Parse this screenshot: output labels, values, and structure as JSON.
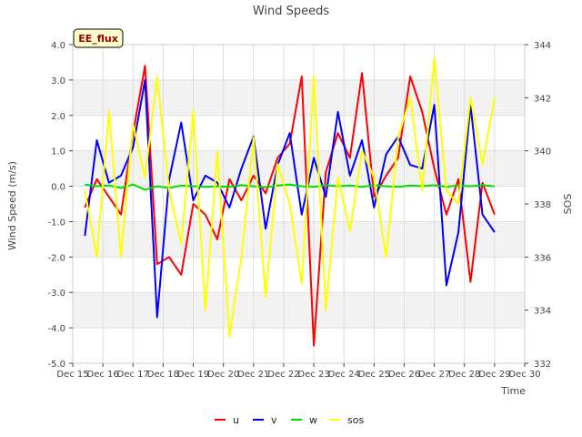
{
  "chart_data": {
    "type": "line",
    "title": "Wind Speeds",
    "xlabel": "Time",
    "ylabel": "Wind Speed (m/s)",
    "y2label": "SOS",
    "badge": "EE_flux",
    "x_ticks": [
      "Dec 15",
      "Dec 16",
      "Dec 17",
      "Dec 18",
      "Dec 19",
      "Dec 20",
      "Dec 21",
      "Dec 22",
      "Dec 23",
      "Dec 24",
      "Dec 25",
      "Dec 26",
      "Dec 27",
      "Dec 28",
      "Dec 29",
      "Dec 30"
    ],
    "xlim": [
      15,
      30
    ],
    "ylim": [
      -5,
      4
    ],
    "y_ticks": [
      "-5.0",
      "-4.0",
      "-3.0",
      "-2.0",
      "-1.0",
      "0.0",
      "1.0",
      "2.0",
      "3.0",
      "4.0"
    ],
    "y2lim": [
      332,
      344
    ],
    "y2_ticks": [
      "332",
      "334",
      "336",
      "338",
      "340",
      "342",
      "344"
    ],
    "grid": true,
    "legend_position": "bottom",
    "x": [
      15.4,
      15.8,
      16.2,
      16.6,
      17.0,
      17.4,
      17.8,
      18.2,
      18.6,
      19.0,
      19.4,
      19.8,
      20.2,
      20.6,
      21.0,
      21.4,
      21.8,
      22.2,
      22.6,
      23.0,
      23.4,
      23.8,
      24.2,
      24.6,
      25.0,
      25.4,
      25.8,
      26.2,
      26.6,
      27.0,
      27.4,
      27.8,
      28.2,
      28.6,
      29.0
    ],
    "series": [
      {
        "name": "u",
        "axis": "left",
        "color": "#ff0000",
        "values": [
          -0.6,
          0.2,
          -0.3,
          -0.8,
          1.5,
          3.4,
          -2.2,
          -2.0,
          -2.5,
          -0.5,
          -0.8,
          -1.5,
          0.2,
          -0.4,
          0.3,
          -0.2,
          0.8,
          1.2,
          3.1,
          -4.5,
          0.4,
          1.5,
          0.8,
          3.2,
          -0.3,
          0.3,
          0.8,
          3.1,
          2.1,
          0.5,
          -0.8,
          0.2,
          -2.7,
          0.1,
          -0.8
        ]
      },
      {
        "name": "v",
        "axis": "left",
        "color": "#0000ff",
        "values": [
          -1.4,
          1.3,
          0.1,
          0.3,
          1.1,
          3.0,
          -3.7,
          0.2,
          1.8,
          -0.4,
          0.3,
          0.1,
          -0.6,
          0.5,
          1.4,
          -1.2,
          0.6,
          1.5,
          -0.8,
          0.8,
          -0.3,
          2.1,
          0.3,
          1.3,
          -0.6,
          0.9,
          1.4,
          0.6,
          0.5,
          2.3,
          -2.8,
          -1.3,
          2.3,
          -0.8,
          -1.3
        ]
      },
      {
        "name": "w",
        "axis": "left",
        "color": "#00dd00",
        "values": [
          0.05,
          0.0,
          0.02,
          -0.05,
          0.05,
          -0.1,
          0.0,
          -0.05,
          0.02,
          0.0,
          -0.02,
          0.0,
          -0.02,
          0.03,
          0.0,
          -0.03,
          0.02,
          0.05,
          0.0,
          -0.02,
          0.03,
          0.0,
          0.02,
          -0.02,
          0.03,
          0.0,
          -0.02,
          0.02,
          0.0,
          0.03,
          -0.02,
          0.02,
          0.0,
          0.03,
          0.0
        ]
      },
      {
        "name": "sos",
        "axis": "right",
        "color": "#ffff00",
        "values": [
          338.5,
          336.0,
          341.5,
          336.0,
          341.0,
          339.0,
          342.8,
          338.5,
          336.5,
          341.5,
          334.0,
          340.0,
          333.0,
          336.0,
          340.5,
          334.5,
          339.5,
          338.0,
          335.0,
          342.8,
          334.0,
          339.0,
          337.0,
          340.0,
          339.0,
          336.0,
          340.5,
          342.0,
          338.5,
          343.5,
          338.5,
          338.0,
          342.0,
          339.5,
          342.0
        ]
      }
    ]
  }
}
